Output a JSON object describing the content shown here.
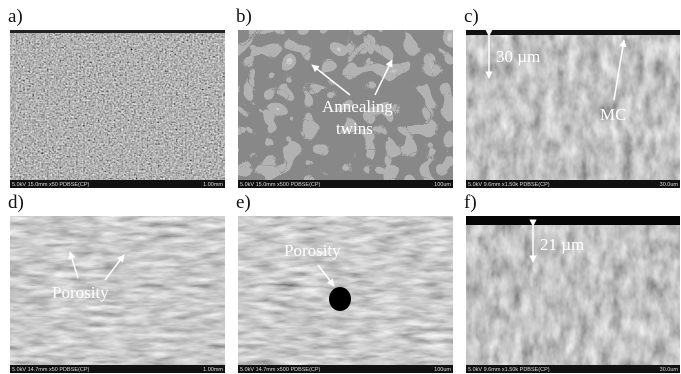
{
  "panels": [
    {
      "label": "a)",
      "footer_left": "5.0kV 15.0mm x50 PDBSE(CP)",
      "footer_right": "1.00mm"
    },
    {
      "label": "b)",
      "annotations": [
        "Annealing",
        "twins"
      ],
      "footer_left": "5.0kV 15.0mm x500 PDBSE(CP)",
      "footer_right": "100um"
    },
    {
      "label": "c)",
      "annotations": [
        "30 µm",
        "MC"
      ],
      "footer_left": "5.0kV 9.6mm x1.50k PDBSE(CP)",
      "footer_right": "30.0um"
    },
    {
      "label": "d)",
      "annotations": [
        "Porosity"
      ],
      "footer_left": "5.0kV 14.7mm x50 PDBSE(CP)",
      "footer_right": "1.00mm"
    },
    {
      "label": "e)",
      "annotations": [
        "Porosity"
      ],
      "footer_left": "5.0kV 14.7mm x500 PDBSE(CP)",
      "footer_right": "100um"
    },
    {
      "label": "f)",
      "annotations": [
        "21 µm"
      ],
      "footer_left": "5.0kV 9.6mm x1.50k PDBSE(CP)",
      "footer_right": "30.0um"
    }
  ]
}
